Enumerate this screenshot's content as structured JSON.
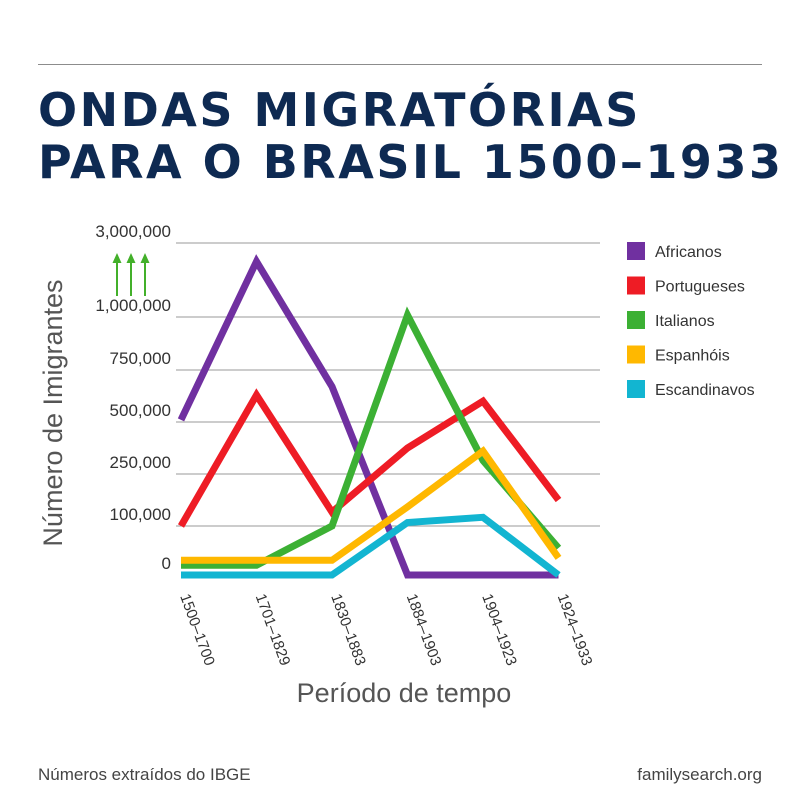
{
  "header": {
    "title_line1": "ONDAS MIGRATÓRIAS",
    "title_line2": "PARA O BRASIL 1500–1933"
  },
  "footer": {
    "source": "Números extraídos do IBGE",
    "site": "familysearch.org"
  },
  "colors": {
    "title": "#0e2a52",
    "axis_text": "#333333",
    "grid": "#9a9a9a",
    "arrow": "#43b02a"
  },
  "chart_data": {
    "type": "line",
    "xlabel": "Período de tempo",
    "ylabel": "Número de Imigrantes",
    "categories": [
      "1500–1700",
      "1701–1829",
      "1830–1883",
      "1884–1903",
      "1904–1923",
      "1924–1933"
    ],
    "y_ticks": [
      {
        "value": 0,
        "label": "0"
      },
      {
        "value": 100000,
        "label": "100,000"
      },
      {
        "value": 250000,
        "label": "250,000"
      },
      {
        "value": 500000,
        "label": "500,000"
      },
      {
        "value": 750000,
        "label": "750,000"
      },
      {
        "value": 1000000,
        "label": "1,000,000"
      },
      {
        "value": 3000000,
        "label": "3,000,000"
      }
    ],
    "scale": "broken (non-linear) axis; break between 1,000,000 and 3,000,000 marked with upward arrows",
    "grid": true,
    "legend_position": "right",
    "series": [
      {
        "name": "Africanos",
        "color": "#7030a0",
        "values": [
          510000,
          2500000,
          670000,
          0,
          0,
          0
        ]
      },
      {
        "name": "Portugueses",
        "color": "#ee1c25",
        "values": [
          100000,
          630000,
          140000,
          375000,
          600000,
          175000
        ]
      },
      {
        "name": "Italianos",
        "color": "#3cb034",
        "values": [
          20000,
          20000,
          100000,
          1050000,
          315000,
          55000
        ]
      },
      {
        "name": "Espanhóis",
        "color": "#ffb800",
        "values": [
          30000,
          30000,
          30000,
          155000,
          360000,
          35000
        ]
      },
      {
        "name": "Escandinavos",
        "color": "#12b5d1",
        "values": [
          0,
          0,
          0,
          110000,
          125000,
          0
        ]
      }
    ]
  }
}
